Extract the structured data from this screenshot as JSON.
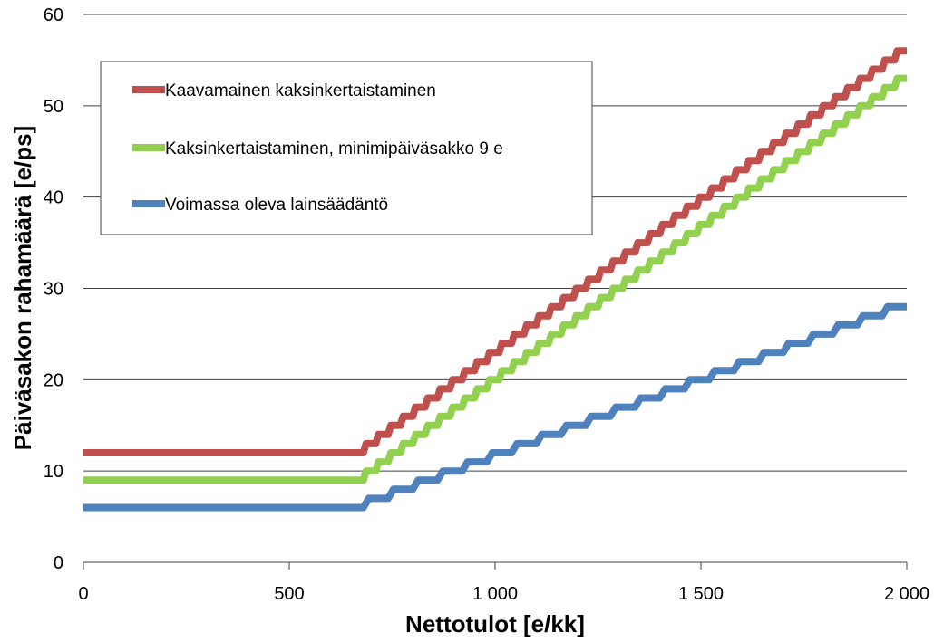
{
  "chart_data": {
    "type": "line",
    "title": "",
    "xlabel": "Nettotulot [e/kk]",
    "ylabel": "Päiväsakon rahamäärä [e/ps]",
    "xlim": [
      0,
      2000
    ],
    "ylim": [
      0,
      60
    ],
    "x_ticks": [
      0,
      500,
      1000,
      1500,
      2000
    ],
    "x_tick_labels": [
      "0",
      "500",
      "1 000",
      "1 500",
      "2 000"
    ],
    "y_ticks": [
      0,
      10,
      20,
      30,
      40,
      50,
      60
    ],
    "y_tick_labels": [
      "0",
      "10",
      "20",
      "30",
      "40",
      "50",
      "60"
    ],
    "grid": "horizontal",
    "legend_position": "upper-left",
    "series": [
      {
        "name": "Kaavamainen kaksinkertaistaminen",
        "color": "#c0504d",
        "x": [
          0,
          680,
          2000
        ],
        "y": [
          12,
          12,
          57
        ],
        "step_width": 30,
        "step_height": 1
      },
      {
        "name": "Kaksinkertaistaminen, minimipäiväsakko 9 e",
        "color": "#92d050",
        "x": [
          0,
          680,
          2000
        ],
        "y": [
          9,
          9,
          54
        ],
        "step_width": 30,
        "step_height": 1
      },
      {
        "name": "Voimassa oleva lainsäädäntö",
        "color": "#4f81bd",
        "x": [
          0,
          680,
          2000
        ],
        "y": [
          6,
          6,
          29
        ],
        "step_width": 60,
        "step_height": 1
      }
    ]
  }
}
